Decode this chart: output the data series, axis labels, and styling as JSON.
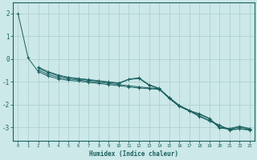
{
  "xlabel": "Humidex (Indice chaleur)",
  "ylabel": "",
  "background_color": "#cce8e8",
  "grid_color": "#aacccc",
  "line_color": "#1a6060",
  "xlim": [
    -0.5,
    23.5
  ],
  "ylim": [
    -3.6,
    2.5
  ],
  "yticks": [
    2,
    1,
    0,
    -1,
    -2,
    -3
  ],
  "xticks": [
    0,
    1,
    2,
    3,
    4,
    5,
    6,
    7,
    8,
    9,
    10,
    11,
    12,
    13,
    14,
    15,
    16,
    17,
    18,
    19,
    20,
    21,
    22,
    23
  ],
  "series": [
    {
      "x": [
        0,
        1,
        2,
        3,
        4,
        5,
        6,
        7,
        8,
        9,
        10,
        11,
        12,
        13,
        14,
        15,
        16,
        17,
        18,
        19,
        20,
        21,
        22,
        23
      ],
      "y": [
        2.0,
        0.05,
        -0.55,
        -0.75,
        -0.87,
        -0.93,
        -0.97,
        -1.02,
        -1.07,
        -1.12,
        -1.17,
        -1.22,
        -1.27,
        -1.3,
        -1.33,
        -1.7,
        -2.05,
        -2.28,
        -2.52,
        -2.72,
        -2.92,
        -3.12,
        -3.07,
        -3.12
      ]
    },
    {
      "x": [
        2,
        3,
        4,
        5,
        6,
        7,
        8,
        9,
        10,
        11,
        12,
        13,
        14,
        15,
        16,
        17,
        18,
        19,
        20,
        21,
        22,
        23
      ],
      "y": [
        -0.4,
        -0.6,
        -0.73,
        -0.82,
        -0.87,
        -0.92,
        -0.97,
        -1.02,
        -1.07,
        -0.9,
        -0.85,
        -1.15,
        -1.3,
        -1.73,
        -2.08,
        -2.28,
        -2.43,
        -2.63,
        -3.03,
        -3.08,
        -2.98,
        -3.08
      ]
    },
    {
      "x": [
        2,
        3,
        4,
        5,
        6,
        7,
        8,
        9,
        10,
        11,
        12,
        13,
        14,
        15,
        16,
        17,
        18,
        19,
        20,
        21,
        22,
        23
      ],
      "y": [
        -0.48,
        -0.68,
        -0.8,
        -0.87,
        -0.92,
        -0.97,
        -1.02,
        -1.07,
        -1.12,
        -1.17,
        -1.22,
        -1.26,
        -1.3,
        -1.68,
        -2.03,
        -2.25,
        -2.5,
        -2.7,
        -2.9,
        -3.1,
        -3.05,
        -3.1
      ]
    },
    {
      "x": [
        2,
        3,
        4,
        5,
        6,
        7,
        8,
        9,
        10,
        11,
        12,
        13,
        14,
        15,
        16,
        17,
        18,
        19,
        20,
        21,
        22,
        23
      ],
      "y": [
        -0.35,
        -0.55,
        -0.7,
        -0.8,
        -0.85,
        -0.9,
        -0.95,
        -1.0,
        -1.05,
        -0.88,
        -0.82,
        -1.12,
        -1.28,
        -1.7,
        -2.06,
        -2.26,
        -2.4,
        -2.6,
        -3.0,
        -3.05,
        -2.95,
        -3.05
      ]
    }
  ]
}
